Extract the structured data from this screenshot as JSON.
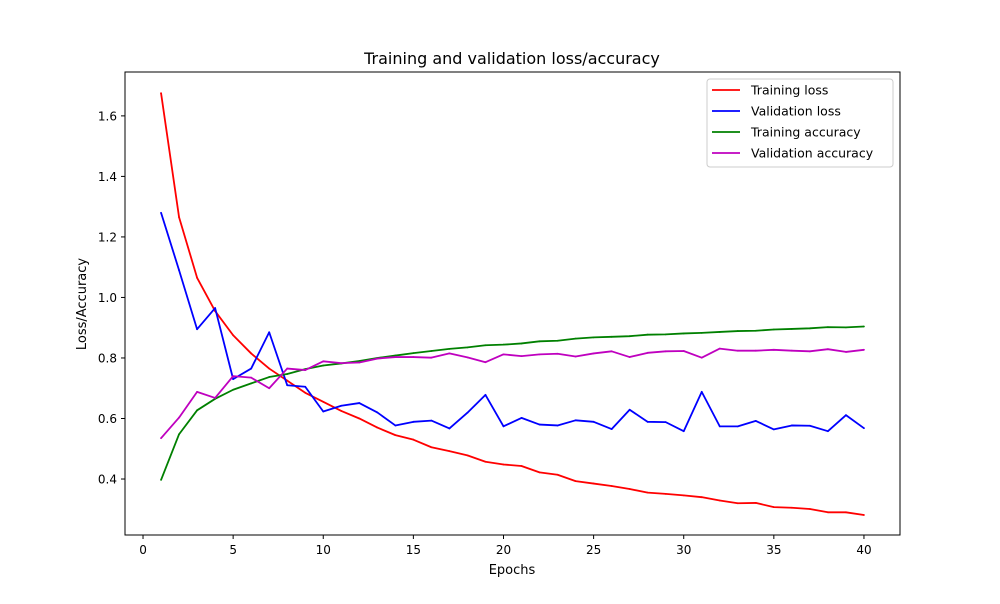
{
  "chart_data": {
    "type": "line",
    "title": "Training and validation loss/accuracy",
    "xlabel": "Epochs",
    "ylabel": "Loss/Accuracy",
    "xlim": [
      -1,
      42
    ],
    "ylim": [
      0.215,
      1.745
    ],
    "xticks": [
      0,
      5,
      10,
      15,
      20,
      25,
      30,
      35,
      40
    ],
    "yticks": [
      0.4,
      0.6,
      0.8,
      1.0,
      1.2,
      1.4,
      1.6
    ],
    "xtick_labels": [
      "0",
      "5",
      "10",
      "15",
      "20",
      "25",
      "30",
      "35",
      "40"
    ],
    "ytick_labels": [
      "0.4",
      "0.6",
      "0.8",
      "1.0",
      "1.2",
      "1.4",
      "1.6"
    ],
    "grid": false,
    "legend_position": "top-right",
    "x": [
      1,
      2,
      3,
      4,
      5,
      6,
      7,
      8,
      9,
      10,
      11,
      12,
      13,
      14,
      15,
      16,
      17,
      18,
      19,
      20,
      21,
      22,
      23,
      24,
      25,
      26,
      27,
      28,
      29,
      30,
      31,
      32,
      33,
      34,
      35,
      36,
      37,
      38,
      39,
      40
    ],
    "series": [
      {
        "name": "Training loss",
        "color": "#ff0000",
        "values": [
          1.675,
          1.265,
          1.065,
          0.955,
          0.875,
          0.815,
          0.765,
          0.725,
          0.685,
          0.655,
          0.625,
          0.6,
          0.57,
          0.545,
          0.53,
          0.505,
          0.492,
          0.478,
          0.457,
          0.448,
          0.443,
          0.422,
          0.414,
          0.393,
          0.385,
          0.377,
          0.367,
          0.355,
          0.351,
          0.346,
          0.34,
          0.329,
          0.32,
          0.321,
          0.307,
          0.305,
          0.301,
          0.29,
          0.29,
          0.281
        ]
      },
      {
        "name": "Validation loss",
        "color": "#0000ff",
        "values": [
          1.28,
          1.09,
          0.895,
          0.965,
          0.73,
          0.765,
          0.885,
          0.71,
          0.705,
          0.623,
          0.642,
          0.651,
          0.62,
          0.577,
          0.589,
          0.593,
          0.567,
          0.619,
          0.678,
          0.574,
          0.602,
          0.58,
          0.577,
          0.594,
          0.589,
          0.565,
          0.629,
          0.589,
          0.588,
          0.558,
          0.688,
          0.574,
          0.574,
          0.592,
          0.564,
          0.577,
          0.576,
          0.558,
          0.611,
          0.568
        ]
      },
      {
        "name": "Training accuracy",
        "color": "#008000",
        "values": [
          0.397,
          0.548,
          0.627,
          0.665,
          0.695,
          0.716,
          0.737,
          0.747,
          0.763,
          0.775,
          0.782,
          0.79,
          0.8,
          0.808,
          0.816,
          0.823,
          0.83,
          0.835,
          0.842,
          0.844,
          0.848,
          0.855,
          0.857,
          0.864,
          0.868,
          0.87,
          0.872,
          0.877,
          0.878,
          0.881,
          0.883,
          0.886,
          0.889,
          0.89,
          0.894,
          0.896,
          0.898,
          0.902,
          0.901,
          0.904
        ]
      },
      {
        "name": "Validation accuracy",
        "color": "#bf00bf",
        "values": [
          0.535,
          0.603,
          0.688,
          0.668,
          0.74,
          0.735,
          0.7,
          0.765,
          0.76,
          0.789,
          0.783,
          0.785,
          0.798,
          0.803,
          0.803,
          0.801,
          0.815,
          0.802,
          0.786,
          0.812,
          0.806,
          0.812,
          0.814,
          0.805,
          0.815,
          0.822,
          0.803,
          0.817,
          0.822,
          0.823,
          0.801,
          0.831,
          0.824,
          0.824,
          0.827,
          0.824,
          0.822,
          0.829,
          0.82,
          0.827
        ]
      }
    ]
  }
}
